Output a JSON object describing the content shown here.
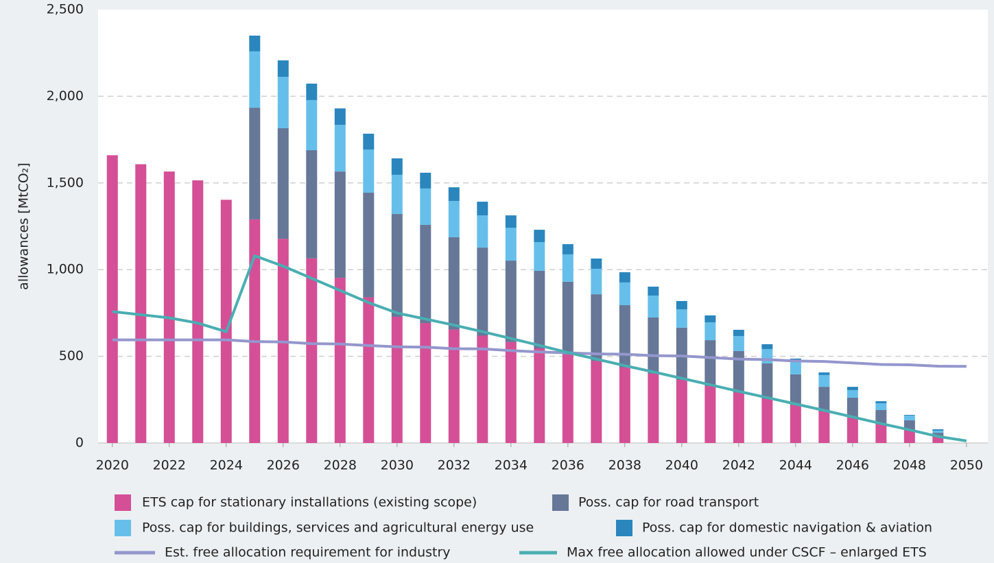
{
  "chart_data": {
    "type": "bar",
    "y_label": "allowances [MtCO₂]",
    "x": [
      2020,
      2021,
      2022,
      2023,
      2024,
      2025,
      2026,
      2027,
      2028,
      2029,
      2030,
      2031,
      2032,
      2033,
      2034,
      2035,
      2036,
      2037,
      2038,
      2039,
      2040,
      2041,
      2042,
      2043,
      2044,
      2045,
      2046,
      2047,
      2048,
      2049,
      2050
    ],
    "xlim": [
      2019.5,
      2050.75
    ],
    "xticks": [
      2020,
      2022,
      2024,
      2026,
      2028,
      2030,
      2032,
      2034,
      2036,
      2038,
      2040,
      2042,
      2044,
      2046,
      2048,
      2050
    ],
    "ylim": [
      0,
      2500
    ],
    "yticks": [
      0,
      500,
      {
        "value": 1000,
        "label": "1,000"
      },
      {
        "value": 1500,
        "label": "1,500"
      },
      {
        "value": 2000,
        "label": "2,000"
      },
      {
        "value": 2500,
        "label": "2,500"
      }
    ],
    "grid": true,
    "series": [
      {
        "name": "ETS cap for stationary installations (existing scope)",
        "color": "#d44f96",
        "kind": "bar",
        "values": [
          1660,
          1608,
          1566,
          1515,
          1403,
          1290,
          1178,
          1065,
          953,
          840,
          728,
          692,
          655,
          619,
          582,
          546,
          510,
          473,
          437,
          400,
          364,
          328,
          291,
          255,
          218,
          182,
          146,
          109,
          73,
          36,
          null
        ]
      },
      {
        "name": "Poss. cap for road transport",
        "color": "#667797",
        "kind": "bar",
        "values": [
          null,
          null,
          null,
          null,
          null,
          644,
          638,
          624,
          613,
          604,
          593,
          566,
          532,
          508,
          470,
          447,
          420,
          385,
          358,
          324,
          301,
          265,
          239,
          204,
          178,
          142,
          115,
          81,
          58,
          23,
          null
        ]
      },
      {
        "name": "Poss. cap for buildings, services and agricultural energy use",
        "color": "#66bfea",
        "kind": "bar",
        "values": [
          null,
          null,
          null,
          null,
          null,
          325,
          296,
          289,
          269,
          249,
          226,
          210,
          209,
          186,
          190,
          166,
          158,
          147,
          131,
          126,
          106,
          103,
          87,
          83,
          74,
          68,
          44,
          39,
          27,
          12,
          null
        ]
      },
      {
        "name": "Poss. cap for domestic navigation & aviation",
        "color": "#2a86bd",
        "kind": "bar",
        "values": [
          null,
          null,
          null,
          null,
          null,
          91,
          95,
          95,
          95,
          91,
          95,
          91,
          79,
          79,
          71,
          71,
          59,
          59,
          59,
          52,
          48,
          40,
          36,
          28,
          17,
          15,
          19,
          12,
          4,
          8,
          null
        ]
      },
      {
        "name": "Est. free allocation requirement for industry",
        "color": "#9497cc",
        "kind": "line",
        "values": [
          595,
          595,
          595,
          595,
          595,
          585,
          583,
          573,
          571,
          562,
          555,
          553,
          544,
          543,
          533,
          525,
          520,
          514,
          512,
          504,
          502,
          493,
          484,
          481,
          473,
          470,
          462,
          453,
          451,
          443,
          442
        ]
      },
      {
        "name": "Max free allocation allowed under CSCF – enlarged ETS",
        "color": "#4aaeb2",
        "kind": "line",
        "values": [
          758,
          740,
          722,
          692,
          642,
          1080,
          1020,
          950,
          880,
          810,
          750,
          715,
          680,
          642,
          603,
          563,
          522,
          484,
          446,
          410,
          373,
          336,
          298,
          262,
          225,
          188,
          150,
          112,
          76,
          38,
          12
        ]
      }
    ]
  }
}
